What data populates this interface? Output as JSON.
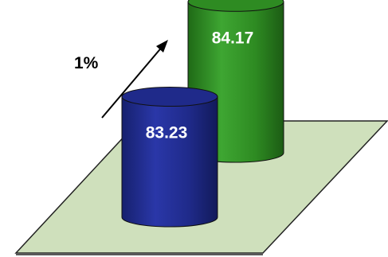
{
  "chart_data": {
    "type": "bar",
    "style": "3d-cylinder",
    "categories": [
      "",
      ""
    ],
    "values": [
      83.23,
      84.17
    ],
    "value_labels": [
      "83.23",
      "84.17"
    ],
    "colors": [
      "#1f2a8a",
      "#2e8b22"
    ],
    "floor_color": "#cfe0bc",
    "annotation": {
      "text": "1%",
      "arrow": "up-right"
    },
    "title": "",
    "xlabel": "",
    "ylabel": "",
    "grid": false,
    "legend": "none"
  }
}
